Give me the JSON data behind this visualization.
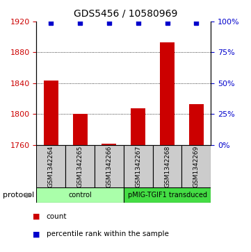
{
  "title": "GDS5456 / 10580969",
  "samples": [
    "GSM1342264",
    "GSM1342265",
    "GSM1342266",
    "GSM1342267",
    "GSM1342268",
    "GSM1342269"
  ],
  "bar_values": [
    1843,
    1800,
    1762,
    1807,
    1893,
    1813
  ],
  "percentile_values": [
    99,
    99,
    99,
    99,
    99,
    99
  ],
  "bar_color": "#cc0000",
  "percentile_color": "#0000cc",
  "ylim_left": [
    1760,
    1920
  ],
  "ylim_right": [
    0,
    100
  ],
  "yticks_left": [
    1760,
    1800,
    1840,
    1880,
    1920
  ],
  "yticks_right": [
    0,
    25,
    50,
    75,
    100
  ],
  "groups": [
    {
      "label": "control",
      "start": 0,
      "end": 3,
      "color": "#aaffaa"
    },
    {
      "label": "pMIG-TGIF1 transduced",
      "start": 3,
      "end": 6,
      "color": "#44dd44"
    }
  ],
  "protocol_label": "protocol",
  "legend_count_label": "count",
  "legend_pct_label": "percentile rank within the sample",
  "tick_label_color_left": "#cc0000",
  "tick_label_color_right": "#0000cc",
  "title_fontsize": 10,
  "tick_fontsize": 8,
  "bar_width": 0.5,
  "sample_box_color": "#cccccc",
  "percentile_marker_size": 5
}
